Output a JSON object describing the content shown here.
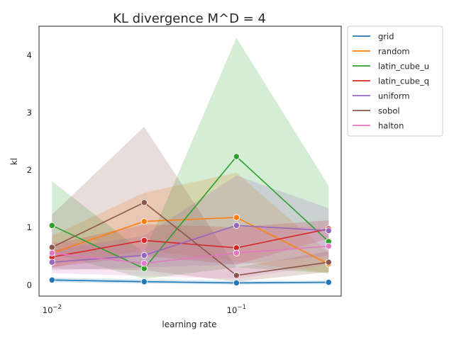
{
  "chart_data": {
    "type": "line",
    "title": "KL divergence M^D = 4",
    "xlabel": "learning rate",
    "ylabel": "kl",
    "x_scale": "log",
    "x": [
      0.01,
      0.03162,
      0.1,
      0.3162
    ],
    "xlim": [
      0.0085,
      0.37
    ],
    "ylim": [
      -0.2,
      4.5
    ],
    "x_ticks": [
      {
        "value": 0.01,
        "base": "10",
        "exp": "−2"
      },
      {
        "value": 0.1,
        "base": "10",
        "exp": "−1"
      }
    ],
    "y_ticks": [
      0,
      1,
      2,
      3,
      4
    ],
    "grid": false,
    "legend_position": "outside-right",
    "series": [
      {
        "name": "grid",
        "color": "#1f77b4",
        "values": [
          0.08,
          0.05,
          0.03,
          0.04
        ],
        "lower": [
          0.04,
          0.02,
          0.0,
          0.01
        ],
        "upper": [
          0.12,
          0.09,
          0.06,
          0.07
        ]
      },
      {
        "name": "random",
        "color": "#ff7f0e",
        "values": [
          0.55,
          1.1,
          1.17,
          0.36
        ],
        "lower": [
          0.3,
          0.6,
          0.4,
          0.2
        ],
        "upper": [
          0.85,
          1.6,
          1.95,
          0.55
        ]
      },
      {
        "name": "latin_cube_u",
        "color": "#2ca02c",
        "values": [
          1.03,
          0.28,
          2.23,
          0.75
        ],
        "lower": [
          0.55,
          0.1,
          0.3,
          0.2
        ],
        "upper": [
          1.8,
          0.55,
          4.3,
          1.72
        ]
      },
      {
        "name": "latin_cube_q",
        "color": "#d62728",
        "values": [
          0.48,
          0.77,
          0.64,
          0.97
        ],
        "lower": [
          0.3,
          0.5,
          0.35,
          0.8
        ],
        "upper": [
          0.7,
          1.05,
          1.0,
          1.12
        ]
      },
      {
        "name": "uniform",
        "color": "#9467bd",
        "values": [
          0.39,
          0.51,
          1.03,
          0.94
        ],
        "lower": [
          0.25,
          0.3,
          0.35,
          0.5
        ],
        "upper": [
          0.6,
          0.85,
          1.9,
          1.33
        ]
      },
      {
        "name": "sobol",
        "color": "#8c564b",
        "values": [
          0.65,
          1.43,
          0.16,
          0.39
        ],
        "lower": [
          0.28,
          0.25,
          0.05,
          0.22
        ],
        "upper": [
          1.22,
          2.75,
          0.3,
          0.58
        ]
      },
      {
        "name": "halton",
        "color": "#e377c2",
        "values": [
          0.55,
          0.37,
          0.55,
          0.67
        ],
        "lower": [
          0.2,
          0.15,
          0.1,
          0.35
        ],
        "upper": [
          0.75,
          0.65,
          1.0,
          1.0
        ]
      }
    ]
  }
}
